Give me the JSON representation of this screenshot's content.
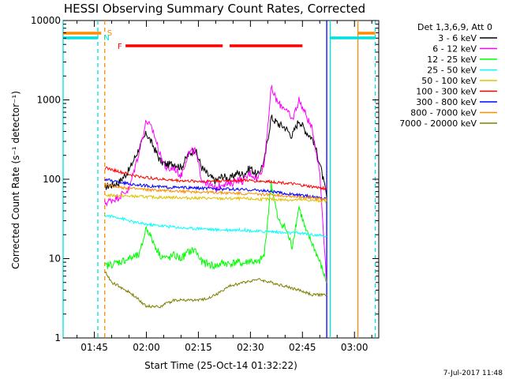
{
  "title": "HESSI Observing Summary Count Rates, Corrected",
  "timestamp": "7-Jul-2017 11:48",
  "chart_data": {
    "type": "line",
    "title": "HESSI Observing Summary Count Rates, Corrected",
    "xlabel": "Start Time (25-Oct-14 01:32:22)",
    "ylabel": "Corrected Count Rate (s⁻¹ detector⁻¹)",
    "y_scale": "log",
    "ylim": [
      1,
      10000
    ],
    "xlim": [
      "01:36",
      "03:07"
    ],
    "y_ticks": [
      {
        "value": 1,
        "label": "1"
      },
      {
        "value": 10,
        "label": "10"
      },
      {
        "value": 100,
        "label": "100"
      },
      {
        "value": 1000,
        "label": "1000"
      },
      {
        "value": 10000,
        "label": "10000"
      }
    ],
    "x_ticks": [
      {
        "value": "01:45",
        "label": "01:45"
      },
      {
        "value": "02:00",
        "label": "02:00"
      },
      {
        "value": "02:15",
        "label": "02:15"
      },
      {
        "value": "02:30",
        "label": "02:30"
      },
      {
        "value": "02:45",
        "label": "02:45"
      },
      {
        "value": "03:00",
        "label": "03:00"
      }
    ],
    "legend_position": "right",
    "legend_header": "Det 1,3,6,9, Att 0",
    "series": [
      {
        "name": "3 - 6 keV",
        "color": "#000000",
        "t": [
          "01:48",
          "01:52",
          "01:55",
          "01:58",
          "02:00",
          "02:02",
          "02:04",
          "02:06",
          "02:08",
          "02:10",
          "02:12",
          "02:14",
          "02:16",
          "02:18",
          "02:20",
          "02:22",
          "02:24",
          "02:26",
          "02:28",
          "02:30",
          "02:32",
          "02:34",
          "02:36",
          "02:38",
          "02:40",
          "02:42",
          "02:44",
          "02:46",
          "02:48",
          "02:50",
          "02:52"
        ],
        "values": [
          80,
          90,
          130,
          250,
          380,
          260,
          170,
          150,
          160,
          140,
          200,
          240,
          140,
          110,
          95,
          110,
          100,
          120,
          115,
          140,
          110,
          170,
          600,
          500,
          450,
          350,
          560,
          400,
          320,
          160,
          60
        ]
      },
      {
        "name": "6 - 12 keV",
        "color": "#ff00ff",
        "t": [
          "01:48",
          "01:52",
          "01:55",
          "01:58",
          "02:00",
          "02:02",
          "02:04",
          "02:06",
          "02:08",
          "02:10",
          "02:12",
          "02:14",
          "02:16",
          "02:18",
          "02:20",
          "02:22",
          "02:24",
          "02:26",
          "02:28",
          "02:30",
          "02:32",
          "02:34",
          "02:36",
          "02:38",
          "02:40",
          "02:42",
          "02:44",
          "02:46",
          "02:48",
          "02:50",
          "02:52"
        ],
        "values": [
          50,
          60,
          75,
          230,
          550,
          400,
          200,
          130,
          140,
          110,
          210,
          230,
          100,
          85,
          75,
          90,
          85,
          100,
          95,
          120,
          100,
          160,
          1400,
          900,
          800,
          550,
          1000,
          650,
          400,
          120,
          5
        ]
      },
      {
        "name": "12 - 25 keV",
        "color": "#00ff00",
        "t": [
          "01:48",
          "01:52",
          "01:55",
          "01:58",
          "02:00",
          "02:02",
          "02:04",
          "02:06",
          "02:08",
          "02:10",
          "02:12",
          "02:14",
          "02:16",
          "02:18",
          "02:20",
          "02:22",
          "02:24",
          "02:26",
          "02:28",
          "02:30",
          "02:32",
          "02:34",
          "02:36",
          "02:38",
          "02:40",
          "02:42",
          "02:44",
          "02:46",
          "02:48",
          "02:50",
          "02:52"
        ],
        "values": [
          8,
          9,
          10,
          11,
          25,
          16,
          11,
          10,
          11,
          10,
          12,
          13,
          9,
          8.5,
          8,
          8.8,
          8.6,
          9,
          8.6,
          9.5,
          8.6,
          11,
          90,
          30,
          25,
          14,
          45,
          22,
          15,
          9,
          5
        ]
      },
      {
        "name": "25 - 50 keV",
        "color": "#00ffff",
        "t": [
          "01:48",
          "01:52",
          "01:56",
          "02:00",
          "02:04",
          "02:08",
          "02:12",
          "02:16",
          "02:20",
          "02:24",
          "02:28",
          "02:32",
          "02:36",
          "02:40",
          "02:44",
          "02:48",
          "02:52"
        ],
        "values": [
          35,
          33,
          29,
          27,
          26,
          25,
          24,
          24,
          23,
          23,
          23,
          22,
          22,
          21,
          21,
          20,
          19
        ]
      },
      {
        "name": "50 - 100 keV",
        "color": "#e0c000",
        "t": [
          "01:48",
          "01:52",
          "01:56",
          "02:00",
          "02:04",
          "02:08",
          "02:12",
          "02:16",
          "02:20",
          "02:24",
          "02:28",
          "02:32",
          "02:36",
          "02:40",
          "02:44",
          "02:48",
          "02:52"
        ],
        "values": [
          63,
          62,
          61,
          60,
          59,
          59,
          58,
          58,
          57,
          57,
          57,
          56,
          56,
          55,
          55,
          54,
          53
        ]
      },
      {
        "name": "100 - 300 keV",
        "color": "#ff0000",
        "t": [
          "01:48",
          "01:52",
          "01:56",
          "02:00",
          "02:04",
          "02:08",
          "02:12",
          "02:16",
          "02:20",
          "02:24",
          "02:28",
          "02:32",
          "02:36",
          "02:40",
          "02:44",
          "02:48",
          "02:52"
        ],
        "values": [
          140,
          125,
          112,
          105,
          100,
          97,
          95,
          94,
          95,
          96,
          97,
          95,
          93,
          90,
          85,
          80,
          76
        ]
      },
      {
        "name": "300 - 800 keV",
        "color": "#0000ff",
        "t": [
          "01:48",
          "01:52",
          "01:56",
          "02:00",
          "02:04",
          "02:08",
          "02:12",
          "02:16",
          "02:20",
          "02:24",
          "02:28",
          "02:32",
          "02:36",
          "02:40",
          "02:44",
          "02:48",
          "02:52"
        ],
        "values": [
          100,
          92,
          86,
          83,
          80,
          79,
          78,
          77,
          76,
          75,
          74,
          73,
          70,
          66,
          63,
          60,
          57
        ]
      },
      {
        "name": "800 - 7000 keV",
        "color": "#ff8c00",
        "t": [
          "01:48",
          "01:52",
          "01:56",
          "02:00",
          "02:04",
          "02:08",
          "02:12",
          "02:16",
          "02:20",
          "02:24",
          "02:28",
          "02:32",
          "02:36",
          "02:40",
          "02:44",
          "02:48",
          "02:52"
        ],
        "values": [
          85,
          80,
          76,
          74,
          72,
          71,
          70,
          69,
          68,
          67,
          66,
          65,
          64,
          62,
          60,
          58,
          56
        ]
      },
      {
        "name": "7000 - 20000 keV",
        "color": "#808000",
        "t": [
          "01:48",
          "01:50",
          "01:52",
          "01:54",
          "01:56",
          "01:58",
          "02:00",
          "02:04",
          "02:08",
          "02:12",
          "02:16",
          "02:20",
          "02:24",
          "02:28",
          "02:32",
          "02:36",
          "02:40",
          "02:44",
          "02:48",
          "02:52"
        ],
        "values": [
          7,
          5,
          4.5,
          4,
          3.5,
          3,
          2.5,
          2.5,
          3,
          3,
          3,
          3.5,
          4.5,
          5,
          5.5,
          5,
          4.5,
          4,
          3.5,
          3.5
        ]
      }
    ],
    "flag_bars": [
      {
        "label": "S",
        "color": "#ff8c00",
        "start": "01:36",
        "end": "01:47"
      },
      {
        "label": "S",
        "color": "#ff8c00",
        "start": "03:01",
        "end": "03:06"
      },
      {
        "label": "N",
        "color": "#00e0e0",
        "start": "01:36",
        "end": "01:46"
      },
      {
        "label": "N",
        "color": "#00e0e0",
        "start": "02:53",
        "end": "03:06"
      },
      {
        "label": "F",
        "color": "#ff0000",
        "start": "01:54",
        "end": "02:22"
      },
      {
        "label": "F",
        "color": "#ff0000",
        "start": "02:24",
        "end": "02:45"
      }
    ],
    "flag_labels": [
      {
        "text": "S",
        "color": "#ff8c00",
        "t": "01:48",
        "row": "upper"
      },
      {
        "text": "N",
        "color": "#00e0e0",
        "t": "01:47",
        "row": "lower"
      },
      {
        "text": "F",
        "color": "#ff0000",
        "t": "01:51",
        "row": "lower"
      }
    ],
    "vertical_markers": [
      {
        "t": "01:36",
        "color": "#00e0e0",
        "style": "solid"
      },
      {
        "t": "01:46",
        "color": "#00e0e0",
        "style": "dashed"
      },
      {
        "t": "01:48",
        "color": "#ff8c00",
        "style": "dashed"
      },
      {
        "t": "02:53",
        "color": "#00e0e0",
        "style": "solid"
      },
      {
        "t": "03:01",
        "color": "#ff8c00",
        "style": "solid"
      },
      {
        "t": "03:06",
        "color": "#00e0e0",
        "style": "dashed"
      },
      {
        "t": "02:52",
        "color": "#0000ff",
        "style": "solid"
      }
    ]
  }
}
